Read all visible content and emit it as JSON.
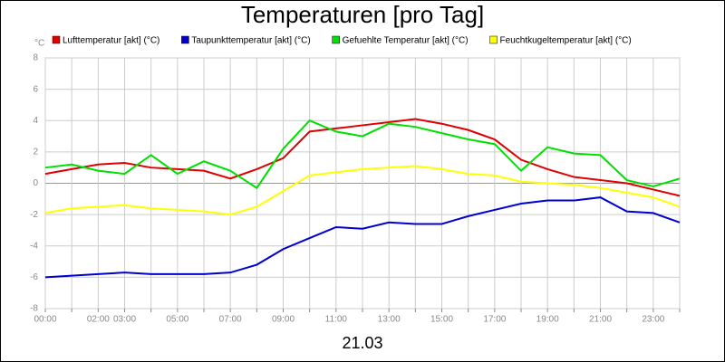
{
  "chart_data": {
    "type": "line",
    "title": "Temperaturen [pro Tag]",
    "y_unit_label": "°C",
    "x_label": "21.03",
    "xlim": [
      0,
      24
    ],
    "ylim": [
      -8,
      8
    ],
    "yticks": [
      -8,
      -6,
      -4,
      -2,
      0,
      2,
      4,
      6,
      8
    ],
    "grid": true,
    "xticks": [
      {
        "value": 0,
        "label": "00:00"
      },
      {
        "value": 1,
        "label": null
      },
      {
        "value": 2,
        "label": "02:00"
      },
      {
        "value": 3,
        "label": "03:00"
      },
      {
        "value": 4,
        "label": null
      },
      {
        "value": 5,
        "label": "05:00"
      },
      {
        "value": 6,
        "label": null
      },
      {
        "value": 7,
        "label": "07:00"
      },
      {
        "value": 8,
        "label": null
      },
      {
        "value": 9,
        "label": "09:00"
      },
      {
        "value": 10,
        "label": null
      },
      {
        "value": 11,
        "label": "11:00"
      },
      {
        "value": 12,
        "label": null
      },
      {
        "value": 13,
        "label": "13:00"
      },
      {
        "value": 14,
        "label": null
      },
      {
        "value": 15,
        "label": "15:00"
      },
      {
        "value": 16,
        "label": null
      },
      {
        "value": 17,
        "label": "17:00"
      },
      {
        "value": 18,
        "label": null
      },
      {
        "value": 19,
        "label": "19:00"
      },
      {
        "value": 20,
        "label": null
      },
      {
        "value": 21,
        "label": "21:00"
      },
      {
        "value": 22,
        "label": null
      },
      {
        "value": 23,
        "label": "23:00"
      },
      {
        "value": 24,
        "label": null
      }
    ],
    "x": [
      0,
      1,
      2,
      3,
      4,
      5,
      6,
      7,
      8,
      9,
      10,
      11,
      12,
      13,
      14,
      15,
      16,
      17,
      18,
      19,
      20,
      21,
      22,
      23,
      24
    ],
    "series": [
      {
        "name": "Lufttemperatur [akt] (°C)",
        "color": "#e00000",
        "values": [
          0.6,
          0.9,
          1.2,
          1.3,
          1.0,
          0.9,
          0.8,
          0.3,
          0.9,
          1.6,
          3.3,
          3.5,
          3.7,
          3.9,
          4.1,
          3.8,
          3.4,
          2.8,
          1.5,
          0.9,
          0.4,
          0.2,
          0.0,
          -0.4,
          -0.8
        ]
      },
      {
        "name": "Taupunkttemperatur [akt] (°C)",
        "color": "#0000d0",
        "values": [
          -6.0,
          -5.9,
          -5.8,
          -5.7,
          -5.8,
          -5.8,
          -5.8,
          -5.7,
          -5.2,
          -4.2,
          -3.5,
          -2.8,
          -2.9,
          -2.5,
          -2.6,
          -2.6,
          -2.1,
          -1.7,
          -1.3,
          -1.1,
          -1.1,
          -0.9,
          -1.8,
          -1.9,
          -2.5
        ]
      },
      {
        "name": "Gefuehlte Temperatur [akt] (°C)",
        "color": "#00e000",
        "values": [
          1.0,
          1.2,
          0.8,
          0.6,
          1.8,
          0.6,
          1.4,
          0.8,
          -0.3,
          2.2,
          4.0,
          3.3,
          3.0,
          3.8,
          3.6,
          3.2,
          2.8,
          2.5,
          0.8,
          2.3,
          1.9,
          1.8,
          0.2,
          -0.2,
          0.3
        ]
      },
      {
        "name": "Feuchtkugeltemperatur [akt] (°C)",
        "color": "#ffff00",
        "values": [
          -1.9,
          -1.6,
          -1.5,
          -1.4,
          -1.6,
          -1.7,
          -1.8,
          -2.0,
          -1.5,
          -0.5,
          0.5,
          0.7,
          0.9,
          1.0,
          1.1,
          0.9,
          0.6,
          0.5,
          0.1,
          0.0,
          -0.1,
          -0.3,
          -0.6,
          -0.9,
          -1.5
        ]
      }
    ]
  }
}
